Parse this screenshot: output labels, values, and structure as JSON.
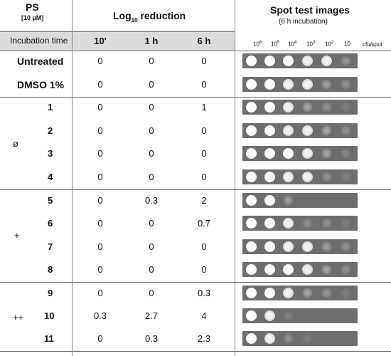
{
  "header": {
    "ps_label": "PS",
    "ps_conc": "[10 µM]",
    "log_prefix": "Log",
    "log_sub": "10",
    "log_suffix": " reduction",
    "spot_title": "Spot test images",
    "spot_subtitle": "(6 h incubation)",
    "incubation_label": "Incubation time",
    "times": [
      "10'",
      "1 h",
      "6 h"
    ],
    "dilution_units": "cfu/spot",
    "dilutions": [
      {
        "base": "10",
        "exp": "6"
      },
      {
        "base": "10",
        "exp": "5"
      },
      {
        "base": "10",
        "exp": "4"
      },
      {
        "base": "10",
        "exp": "3"
      },
      {
        "base": "10",
        "exp": "2"
      },
      {
        "base": "10",
        "exp": ""
      }
    ]
  },
  "groups": [
    {
      "symbol": ""
    },
    {
      "symbol": "ø"
    },
    {
      "symbol": "+"
    },
    {
      "symbol": "++"
    }
  ],
  "rows": [
    {
      "label": "Untreated",
      "values": [
        "0",
        "0",
        "0"
      ],
      "growth": [
        1,
        1,
        1,
        0.9,
        0.6,
        0.35
      ]
    },
    {
      "label": "DMSO 1%",
      "values": [
        "0",
        "0",
        "0"
      ],
      "growth": [
        1,
        1,
        0.9,
        0.7,
        0.45,
        0.3
      ]
    },
    {
      "label": "1",
      "values": [
        "0",
        "0",
        "1"
      ],
      "growth": [
        1,
        1,
        0.8,
        0.5,
        0.3,
        0.1
      ]
    },
    {
      "label": "2",
      "values": [
        "0",
        "0",
        "0"
      ],
      "growth": [
        1,
        1,
        0.9,
        0.6,
        0.5,
        0.3
      ]
    },
    {
      "label": "3",
      "values": [
        "0",
        "0",
        "0"
      ],
      "growth": [
        1,
        1,
        1,
        0.8,
        0.5,
        0.2
      ]
    },
    {
      "label": "4",
      "values": [
        "0",
        "0",
        "0"
      ],
      "growth": [
        1,
        1,
        0.9,
        0.7,
        0.3,
        0.1
      ]
    },
    {
      "label": "5",
      "values": [
        "0",
        "0.3",
        "2"
      ],
      "growth": [
        1,
        1,
        0.4,
        0,
        0,
        0
      ]
    },
    {
      "label": "6",
      "values": [
        "0",
        "0",
        "0.7"
      ],
      "growth": [
        1,
        1,
        0.7,
        0.3,
        0.3,
        0.15
      ]
    },
    {
      "label": "7",
      "values": [
        "0",
        "0",
        "0"
      ],
      "growth": [
        1,
        1,
        0.9,
        0.7,
        0.45,
        0.3
      ]
    },
    {
      "label": "8",
      "values": [
        "0",
        "0",
        "0"
      ],
      "growth": [
        1,
        1,
        1,
        0.8,
        0.5,
        0.3
      ]
    },
    {
      "label": "9",
      "values": [
        "0",
        "0",
        "0.3"
      ],
      "growth": [
        1,
        1,
        0.8,
        0.5,
        0.35,
        0.05
      ]
    },
    {
      "label": "10",
      "values": [
        "0.3",
        "2.7",
        "4"
      ],
      "growth": [
        1,
        0.7,
        0.05,
        0,
        0,
        0
      ]
    },
    {
      "label": "11",
      "values": [
        "0",
        "0.3",
        "2.3"
      ],
      "growth": [
        1,
        0.9,
        0.3,
        0.05,
        0,
        0
      ]
    }
  ]
}
